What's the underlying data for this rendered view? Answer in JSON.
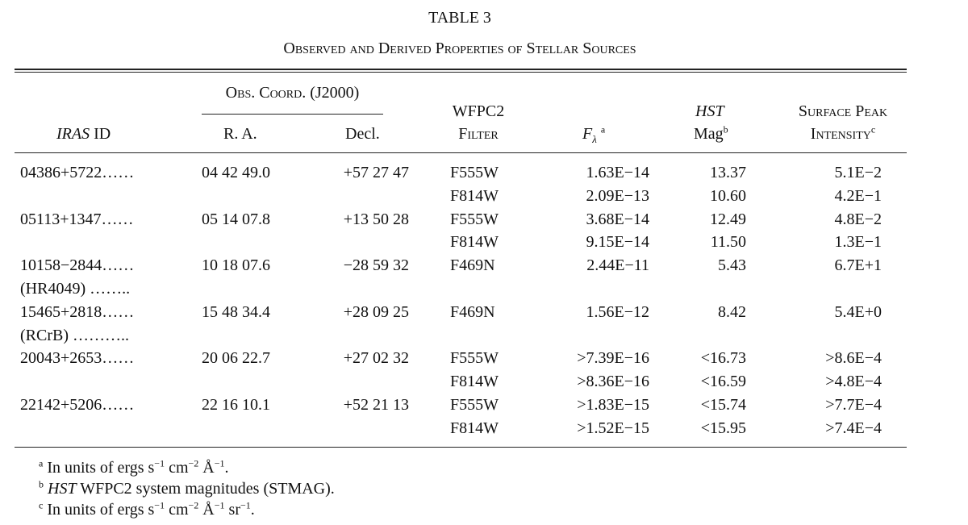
{
  "table_number": "TABLE 3",
  "title": "Observed and Derived Properties of Stellar Sources",
  "header": {
    "group": "Obs. Coord. (J2000)",
    "iras_italic": "IRAS",
    "iras_text": "ID",
    "ra": "R. A.",
    "decl": "Decl.",
    "filter_line1": "WFPC2",
    "filter_line2": "Filter",
    "flux_symbol": "F",
    "flux_sub": "λ",
    "flux_note": "a",
    "mag_line1": "HST",
    "mag_line2": "Mag",
    "mag_note": "b",
    "intensity_line1": "Surface Peak",
    "intensity_line2": "Intensity",
    "intensity_note": "c"
  },
  "sources": [
    {
      "id": "04386+5722……",
      "ra": "04 42 49.0",
      "decl": "+57 27 47",
      "measurements": [
        {
          "filter": "F555W",
          "flux": "1.63E−14",
          "mag": "13.37",
          "intensity": "5.1E−2"
        },
        {
          "filter": "F814W",
          "flux": "2.09E−13",
          "mag": "10.60",
          "intensity": "4.2E−1"
        }
      ]
    },
    {
      "id": "05113+1347……",
      "ra": "05 14 07.8",
      "decl": "+13 50 28",
      "measurements": [
        {
          "filter": "F555W",
          "flux": "3.68E−14",
          "mag": "12.49",
          "intensity": "4.8E−2"
        },
        {
          "filter": "F814W",
          "flux": "9.15E−14",
          "mag": "11.50",
          "intensity": "1.3E−1"
        }
      ]
    },
    {
      "id": "10158−2844……",
      "alt_name": "(HR4049) ……..",
      "ra": "10 18 07.6",
      "decl": "−28 59 32",
      "measurements": [
        {
          "filter": "F469N",
          "flux": "2.44E−11",
          "mag": "5.43",
          "intensity": "6.7E+1"
        }
      ]
    },
    {
      "id": "15465+2818……",
      "alt_name": "(RCrB) ………..",
      "ra": "15 48 34.4",
      "decl": "+28 09 25",
      "measurements": [
        {
          "filter": "F469N",
          "flux": "1.56E−12",
          "mag": "8.42",
          "intensity": "5.4E+0"
        }
      ]
    },
    {
      "id": "20043+2653……",
      "ra": "20 06 22.7",
      "decl": "+27 02 32",
      "measurements": [
        {
          "filter": "F555W",
          "flux": ">7.39E−16",
          "mag": "<16.73",
          "intensity": ">8.6E−4"
        },
        {
          "filter": "F814W",
          "flux": ">8.36E−16",
          "mag": "<16.59",
          "intensity": ">4.8E−4"
        }
      ]
    },
    {
      "id": "22142+5206……",
      "ra": "22 16 10.1",
      "decl": "+52 21 13",
      "measurements": [
        {
          "filter": "F555W",
          "flux": ">1.83E−15",
          "mag": "<15.74",
          "intensity": ">7.7E−4"
        },
        {
          "filter": "F814W",
          "flux": ">1.52E−15",
          "mag": "<15.95",
          "intensity": ">7.4E−4"
        }
      ]
    }
  ],
  "footnotes": [
    {
      "mark": "a",
      "parts": [
        {
          "text": "In units of ergs s"
        },
        {
          "sup": "−1"
        },
        {
          "text": " cm"
        },
        {
          "sup": "−2"
        },
        {
          "text": " Å"
        },
        {
          "sup": "−1"
        },
        {
          "text": "."
        }
      ]
    },
    {
      "mark": "b",
      "parts": [
        {
          "italic": "HST"
        },
        {
          "text": " WFPC2 system magnitudes (STMAG)."
        }
      ]
    },
    {
      "mark": "c",
      "parts": [
        {
          "text": "In units of ergs s"
        },
        {
          "sup": "−1"
        },
        {
          "text": " cm"
        },
        {
          "sup": "−2"
        },
        {
          "text": " Å"
        },
        {
          "sup": "−1"
        },
        {
          "text": " sr"
        },
        {
          "sup": "−1"
        },
        {
          "text": "."
        }
      ]
    }
  ]
}
